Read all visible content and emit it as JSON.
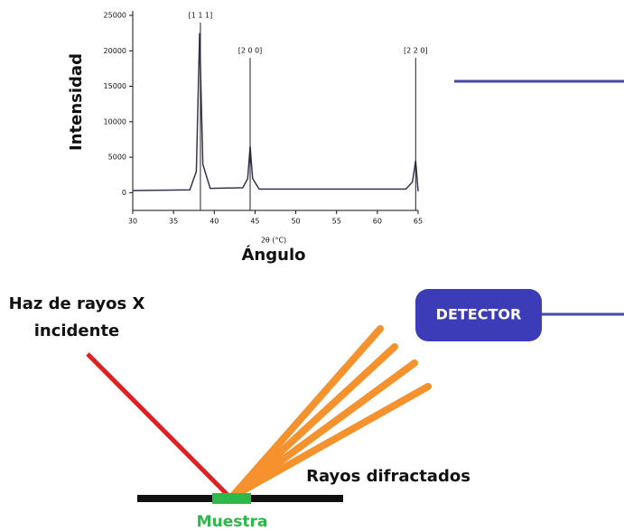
{
  "chart_data": {
    "type": "line",
    "y_label": "Intensidad",
    "x_label": "2θ (°C)",
    "x_axis_title": "Ángulo",
    "x": [
      30,
      37,
      37.8,
      38.2,
      38.6,
      39.5,
      43.5,
      44.1,
      44.4,
      44.7,
      45.5,
      63.5,
      64.3,
      64.7,
      65
    ],
    "values": [
      300,
      400,
      3000,
      22500,
      4000,
      600,
      700,
      2000,
      6500,
      2000,
      500,
      500,
      1500,
      4500,
      200
    ],
    "color": "#3a3250",
    "peaks": [
      {
        "label": "[1 1 1]",
        "x": 38.3,
        "height": 24000
      },
      {
        "label": "[2 0 0]",
        "x": 44.4,
        "height": 19000
      },
      {
        "label": "[2 2 0]",
        "x": 64.7,
        "height": 19000
      }
    ],
    "xlim": [
      30,
      65
    ],
    "xticks": [
      30,
      35,
      40,
      45,
      50,
      55,
      60,
      65
    ],
    "ylim": [
      -2500,
      25000
    ],
    "yticks": [
      0,
      5000,
      10000,
      15000,
      20000,
      25000
    ]
  },
  "diagram": {
    "incident_beam": "Haz de rayos X incidente",
    "detector": "DETECTOR",
    "diffracted_beams": "Rayos difractados",
    "sample": "Muestra"
  }
}
